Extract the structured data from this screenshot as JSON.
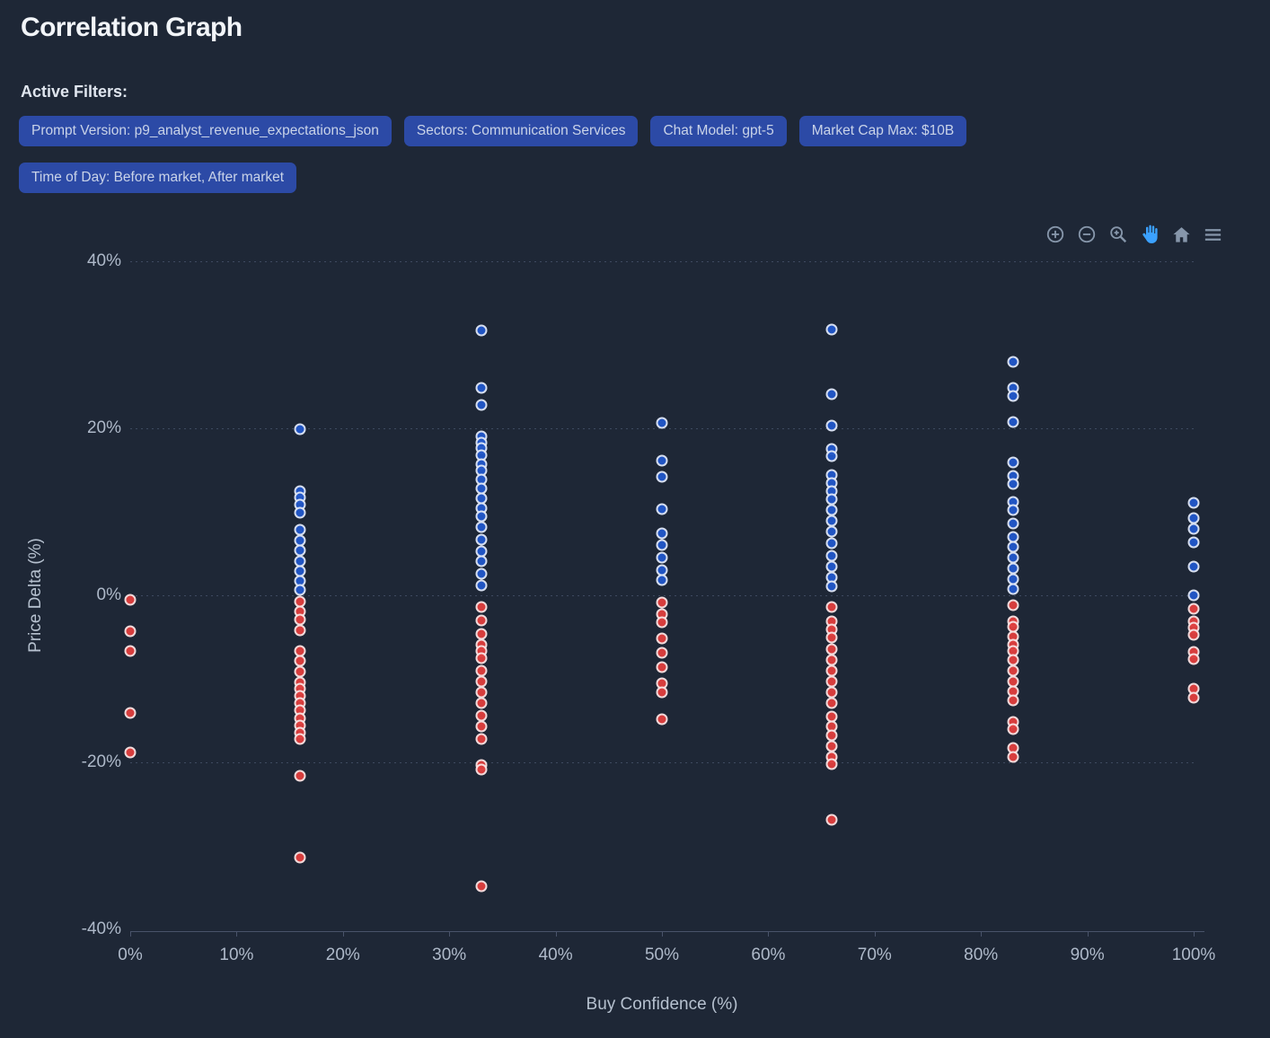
{
  "page": {
    "title": "Correlation Graph"
  },
  "filters": {
    "label": "Active Filters:",
    "pills": [
      "Prompt Version: p9_analyst_revenue_expectations_json",
      "Sectors: Communication Services",
      "Chat Model: gpt-5",
      "Market Cap Max: $10B",
      "Time of Day: Before market, After market"
    ]
  },
  "toolbar": {
    "icons": [
      "zoom-in-icon",
      "zoom-out-icon",
      "box-zoom-icon",
      "pan-hand-icon",
      "reset-home-icon",
      "menu-icon"
    ],
    "active_icon": "pan-hand-icon"
  },
  "colors": {
    "background": "#1e2736",
    "pill_background": "#2c4aa6",
    "positive_dot": "#2257c9",
    "negative_dot": "#df3e3e",
    "dot_ring": "rgba(255,255,255,0.85)",
    "grid": "#3e4a60",
    "axis": "#49536a",
    "tick_text": "#aeb9c9",
    "toolbar_icon": "#8696aa",
    "toolbar_icon_active": "#3ba1ff"
  },
  "chart_data": {
    "type": "scatter",
    "xlabel": "Buy Confidence (%)",
    "ylabel": "Price Delta (%)",
    "xlim": [
      0,
      100
    ],
    "ylim": [
      -40,
      40
    ],
    "x_ticks": [
      {
        "label": "0%",
        "value": 0
      },
      {
        "label": "10%",
        "value": 10
      },
      {
        "label": "20%",
        "value": 20
      },
      {
        "label": "30%",
        "value": 30
      },
      {
        "label": "40%",
        "value": 40
      },
      {
        "label": "50%",
        "value": 50
      },
      {
        "label": "60%",
        "value": 60
      },
      {
        "label": "70%",
        "value": 70
      },
      {
        "label": "80%",
        "value": 80
      },
      {
        "label": "90%",
        "value": 90
      },
      {
        "label": "100%",
        "value": 100
      }
    ],
    "y_ticks": [
      {
        "label": "40%",
        "value": 40,
        "gridline": true
      },
      {
        "label": "20%",
        "value": 20,
        "gridline": true
      },
      {
        "label": "0%",
        "value": 0,
        "gridline": true
      },
      {
        "label": "-20%",
        "value": -20,
        "gridline": true
      },
      {
        "label": "-40%",
        "value": -40,
        "gridline": false
      }
    ],
    "grid": "dotted-horizontal",
    "legend": "none",
    "series": [
      {
        "name": "positive-price-delta",
        "color": "#2257c9",
        "points": [
          [
            16,
            19.9
          ],
          [
            16,
            12.5
          ],
          [
            16,
            11.7
          ],
          [
            16,
            10.9
          ],
          [
            16,
            9.9
          ],
          [
            16,
            7.9
          ],
          [
            16,
            6.6
          ],
          [
            16,
            5.4
          ],
          [
            16,
            4.1
          ],
          [
            16,
            2.9
          ],
          [
            16,
            1.7
          ],
          [
            16,
            0.6
          ],
          [
            33,
            31.7
          ],
          [
            33,
            24.8
          ],
          [
            33,
            22.8
          ],
          [
            33,
            19.0
          ],
          [
            33,
            18.3
          ],
          [
            33,
            17.6
          ],
          [
            33,
            16.8
          ],
          [
            33,
            15.7
          ],
          [
            33,
            15.0
          ],
          [
            33,
            13.9
          ],
          [
            33,
            12.8
          ],
          [
            33,
            11.6
          ],
          [
            33,
            10.4
          ],
          [
            33,
            9.5
          ],
          [
            33,
            8.2
          ],
          [
            33,
            6.7
          ],
          [
            33,
            5.3
          ],
          [
            33,
            4.1
          ],
          [
            33,
            2.6
          ],
          [
            33,
            1.2
          ],
          [
            50,
            20.6
          ],
          [
            50,
            16.1
          ],
          [
            50,
            14.2
          ],
          [
            50,
            10.3
          ],
          [
            50,
            7.4
          ],
          [
            50,
            6.0
          ],
          [
            50,
            4.5
          ],
          [
            50,
            3.0
          ],
          [
            50,
            1.8
          ],
          [
            66,
            31.8
          ],
          [
            66,
            24.1
          ],
          [
            66,
            20.3
          ],
          [
            66,
            17.5
          ],
          [
            66,
            16.7
          ],
          [
            66,
            14.4
          ],
          [
            66,
            13.4
          ],
          [
            66,
            12.5
          ],
          [
            66,
            11.5
          ],
          [
            66,
            10.2
          ],
          [
            66,
            8.9
          ],
          [
            66,
            7.6
          ],
          [
            66,
            6.2
          ],
          [
            66,
            4.7
          ],
          [
            66,
            3.4
          ],
          [
            66,
            2.2
          ],
          [
            66,
            1.1
          ],
          [
            83,
            28.0
          ],
          [
            83,
            24.8
          ],
          [
            83,
            23.9
          ],
          [
            83,
            20.7
          ],
          [
            83,
            15.9
          ],
          [
            83,
            14.3
          ],
          [
            83,
            13.3
          ],
          [
            83,
            11.2
          ],
          [
            83,
            10.2
          ],
          [
            83,
            8.6
          ],
          [
            83,
            7.0
          ],
          [
            83,
            5.8
          ],
          [
            83,
            4.5
          ],
          [
            83,
            3.2
          ],
          [
            83,
            1.9
          ],
          [
            83,
            0.8
          ],
          [
            100,
            11.1
          ],
          [
            100,
            9.2
          ],
          [
            100,
            8.0
          ],
          [
            100,
            6.3
          ],
          [
            100,
            3.4
          ],
          [
            100,
            0.0
          ]
        ]
      },
      {
        "name": "negative-price-delta",
        "color": "#df3e3e",
        "points": [
          [
            0,
            -0.5
          ],
          [
            0,
            -4.3
          ],
          [
            0,
            -6.7
          ],
          [
            0,
            -14.1
          ],
          [
            0,
            -18.8
          ],
          [
            16,
            -0.7
          ],
          [
            16,
            -1.9
          ],
          [
            16,
            -2.9
          ],
          [
            16,
            -4.2
          ],
          [
            16,
            -6.7
          ],
          [
            16,
            -7.9
          ],
          [
            16,
            -9.1
          ],
          [
            16,
            -10.4
          ],
          [
            16,
            -11.2
          ],
          [
            16,
            -12.0
          ],
          [
            16,
            -12.9
          ],
          [
            16,
            -13.8
          ],
          [
            16,
            -14.7
          ],
          [
            16,
            -15.6
          ],
          [
            16,
            -16.4
          ],
          [
            16,
            -17.2
          ],
          [
            16,
            -21.6
          ],
          [
            16,
            -31.4
          ],
          [
            33,
            -1.4
          ],
          [
            33,
            -3.0
          ],
          [
            33,
            -4.6
          ],
          [
            33,
            -5.9
          ],
          [
            33,
            -6.7
          ],
          [
            33,
            -7.5
          ],
          [
            33,
            -9.0
          ],
          [
            33,
            -10.3
          ],
          [
            33,
            -11.6
          ],
          [
            33,
            -12.9
          ],
          [
            33,
            -14.4
          ],
          [
            33,
            -15.7
          ],
          [
            33,
            -17.2
          ],
          [
            33,
            -20.3
          ],
          [
            33,
            -20.9
          ],
          [
            33,
            -34.8
          ],
          [
            50,
            -0.9
          ],
          [
            50,
            -2.3
          ],
          [
            50,
            -3.2
          ],
          [
            50,
            -5.2
          ],
          [
            50,
            -6.9
          ],
          [
            50,
            -8.6
          ],
          [
            50,
            -10.5
          ],
          [
            50,
            -11.6
          ],
          [
            50,
            -14.8
          ],
          [
            66,
            -1.4
          ],
          [
            66,
            -3.1
          ],
          [
            66,
            -4.1
          ],
          [
            66,
            -5.1
          ],
          [
            66,
            -6.4
          ],
          [
            66,
            -7.7
          ],
          [
            66,
            -9.0
          ],
          [
            66,
            -10.3
          ],
          [
            66,
            -11.6
          ],
          [
            66,
            -12.9
          ],
          [
            66,
            -14.5
          ],
          [
            66,
            -15.7
          ],
          [
            66,
            -16.8
          ],
          [
            66,
            -18.1
          ],
          [
            66,
            -19.4
          ],
          [
            66,
            -20.2
          ],
          [
            66,
            -26.9
          ],
          [
            83,
            -1.2
          ],
          [
            83,
            -3.1
          ],
          [
            83,
            -3.8
          ],
          [
            83,
            -4.9
          ],
          [
            83,
            -5.9
          ],
          [
            83,
            -6.7
          ],
          [
            83,
            -7.7
          ],
          [
            83,
            -9.0
          ],
          [
            83,
            -10.3
          ],
          [
            83,
            -11.5
          ],
          [
            83,
            -12.6
          ],
          [
            83,
            -15.2
          ],
          [
            83,
            -16.0
          ],
          [
            83,
            -18.3
          ],
          [
            83,
            -19.4
          ],
          [
            100,
            -1.6
          ],
          [
            100,
            -3.1
          ],
          [
            100,
            -3.9
          ],
          [
            100,
            -4.7
          ],
          [
            100,
            -6.8
          ],
          [
            100,
            -7.6
          ],
          [
            100,
            -11.2
          ],
          [
            100,
            -12.3
          ]
        ]
      }
    ]
  }
}
